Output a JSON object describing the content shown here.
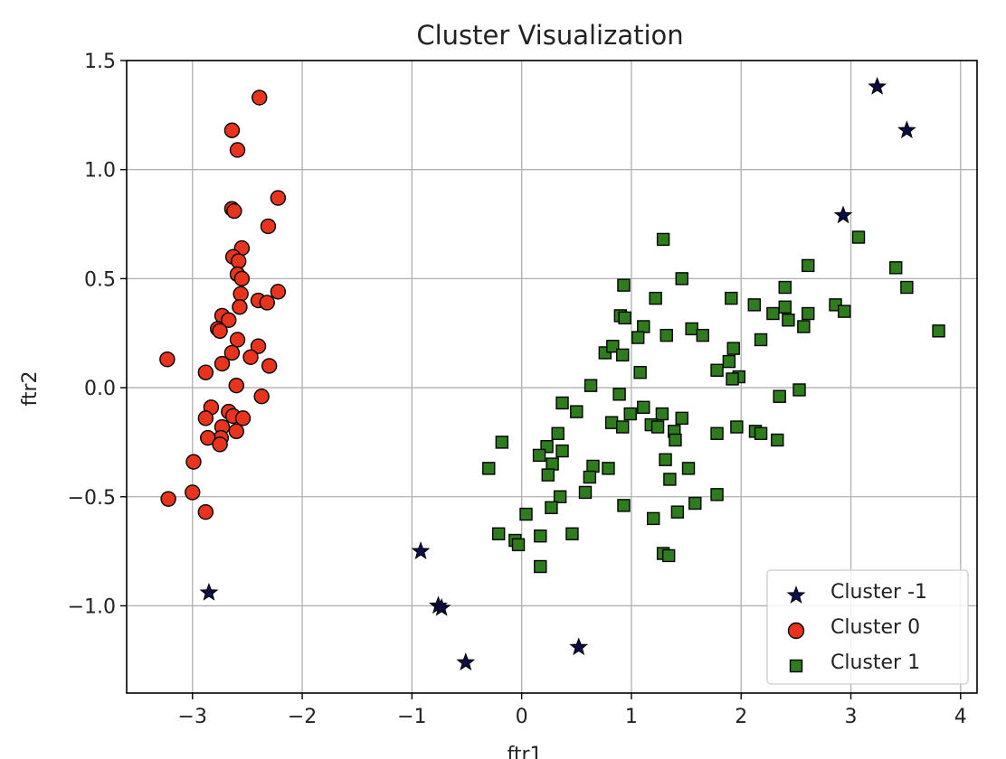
{
  "chart_data": {
    "type": "scatter",
    "title": "Cluster Visualization",
    "xlabel": "ftr1",
    "ylabel": "ftr2",
    "xlim": [
      -3.6,
      4.15
    ],
    "ylim": [
      -1.4,
      1.5
    ],
    "xticks": [
      -3,
      -2,
      -1,
      0,
      1,
      2,
      3,
      4
    ],
    "xtick_labels": [
      "−3",
      "−2",
      "−1",
      "0",
      "1",
      "2",
      "3",
      "4"
    ],
    "yticks": [
      -1.0,
      -0.5,
      0.0,
      0.5,
      1.0,
      1.5
    ],
    "ytick_labels": [
      "−1.0",
      "−0.5",
      "0.0",
      "0.5",
      "1.0",
      "1.5"
    ],
    "grid": true,
    "legend_position": "lower-right",
    "series": [
      {
        "name": "Cluster -1",
        "marker": "star",
        "color": "#0b0b45",
        "edge": "#000000",
        "x": [
          3.24,
          3.51,
          2.93,
          -2.85,
          -0.92,
          -0.76,
          -0.73,
          -0.51,
          0.52
        ],
        "y": [
          1.38,
          1.18,
          0.79,
          -0.94,
          -0.75,
          -1.0,
          -1.01,
          -1.26,
          -1.19
        ]
      },
      {
        "name": "Cluster 0",
        "marker": "circle",
        "color": "#e8341c",
        "edge": "#000000",
        "x": [
          -2.39,
          -2.64,
          -2.59,
          -2.22,
          -2.64,
          -2.62,
          -2.31,
          -2.55,
          -2.63,
          -2.58,
          -2.59,
          -2.55,
          -2.56,
          -2.22,
          -2.4,
          -2.32,
          -2.57,
          -2.73,
          -2.67,
          -2.77,
          -2.75,
          -2.59,
          -2.64,
          -2.4,
          -2.47,
          -3.23,
          -2.73,
          -2.88,
          -2.3,
          -2.6,
          -2.37,
          -2.83,
          -2.67,
          -2.88,
          -2.63,
          -2.54,
          -2.73,
          -2.6,
          -2.74,
          -2.86,
          -2.75,
          -2.99,
          -3.22,
          -3.0,
          -2.88
        ],
        "y": [
          1.33,
          1.18,
          1.09,
          0.87,
          0.82,
          0.81,
          0.74,
          0.64,
          0.6,
          0.58,
          0.52,
          0.5,
          0.43,
          0.44,
          0.4,
          0.39,
          0.37,
          0.33,
          0.31,
          0.27,
          0.26,
          0.22,
          0.16,
          0.19,
          0.14,
          0.13,
          0.11,
          0.07,
          0.1,
          0.01,
          -0.04,
          -0.09,
          -0.11,
          -0.14,
          -0.13,
          -0.14,
          -0.18,
          -0.2,
          -0.23,
          -0.23,
          -0.26,
          -0.34,
          -0.51,
          -0.48,
          -0.57
        ]
      },
      {
        "name": "Cluster 1",
        "marker": "square",
        "color": "#2e7d1d",
        "edge": "#000000",
        "x": [
          1.29,
          3.07,
          2.61,
          3.41,
          1.46,
          0.93,
          2.4,
          3.51,
          1.22,
          2.86,
          2.4,
          1.91,
          2.12,
          2.29,
          2.94,
          2.61,
          0.9,
          0.94,
          1.11,
          2.57,
          1.55,
          1.65,
          1.32,
          1.06,
          0.76,
          3.8,
          2.43,
          2.18,
          0.83,
          1.93,
          1.78,
          0.92,
          1.89,
          1.98,
          1.92,
          1.08,
          0.63,
          2.35,
          2.53,
          0.89,
          1.11,
          0.37,
          0.5,
          0.99,
          1.28,
          1.46,
          1.18,
          0.82,
          1.96,
          1.24,
          0.92,
          1.39,
          1.78,
          2.13,
          2.18,
          2.33,
          0.33,
          1.4,
          0.23,
          -0.18,
          0.65,
          0.37,
          0.16,
          1.31,
          0.28,
          0.79,
          -0.3,
          1.52,
          0.24,
          0.62,
          1.35,
          0.58,
          0.35,
          1.78,
          1.58,
          0.27,
          0.93,
          0.04,
          1.42,
          1.2,
          0.46,
          -0.21,
          0.17,
          -0.06,
          -0.03,
          1.29,
          1.34,
          0.17
        ],
        "y": [
          0.68,
          0.69,
          0.56,
          0.55,
          0.5,
          0.47,
          0.46,
          0.46,
          0.41,
          0.38,
          0.37,
          0.41,
          0.38,
          0.34,
          0.35,
          0.34,
          0.33,
          0.32,
          0.28,
          0.28,
          0.27,
          0.24,
          0.24,
          0.23,
          0.16,
          0.26,
          0.31,
          0.22,
          0.19,
          0.18,
          0.08,
          0.15,
          0.12,
          0.05,
          0.04,
          0.07,
          0.01,
          -0.04,
          -0.01,
          -0.03,
          -0.09,
          -0.07,
          -0.11,
          -0.12,
          -0.12,
          -0.14,
          -0.17,
          -0.16,
          -0.18,
          -0.18,
          -0.18,
          -0.2,
          -0.21,
          -0.2,
          -0.21,
          -0.24,
          -0.21,
          -0.24,
          -0.27,
          -0.25,
          -0.36,
          -0.29,
          -0.31,
          -0.33,
          -0.35,
          -0.37,
          -0.37,
          -0.37,
          -0.4,
          -0.41,
          -0.42,
          -0.48,
          -0.5,
          -0.49,
          -0.53,
          -0.55,
          -0.54,
          -0.58,
          -0.57,
          -0.6,
          -0.67,
          -0.67,
          -0.68,
          -0.7,
          -0.72,
          -0.76,
          -0.77,
          -0.82
        ]
      }
    ]
  }
}
